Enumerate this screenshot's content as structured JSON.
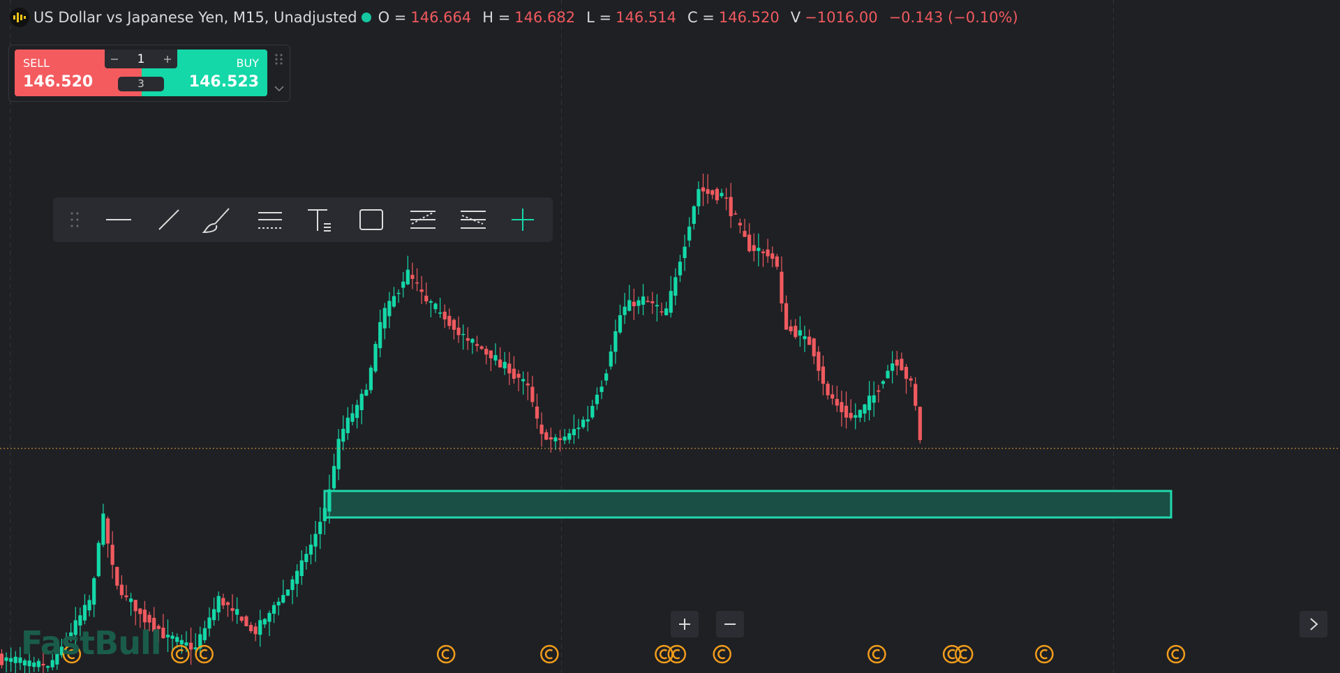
{
  "header": {
    "title": "US Dollar vs Japanese Yen, M15, Unadjusted",
    "ohlc": [
      {
        "label": "O =",
        "value": "146.664"
      },
      {
        "label": "H =",
        "value": "146.682"
      },
      {
        "label": "L =",
        "value": "146.514"
      },
      {
        "label": "C =",
        "value": "146.520"
      },
      {
        "label": "V",
        "value": "−1016.00"
      }
    ],
    "change": "−0.143 (−0.10%)"
  },
  "trade_panel": {
    "sell_label": "SELL",
    "sell_price": "146.520",
    "quantity": "1",
    "spread": "3",
    "buy_label": "BUY",
    "buy_price": "146.523"
  },
  "brand": "FastBull"
}
